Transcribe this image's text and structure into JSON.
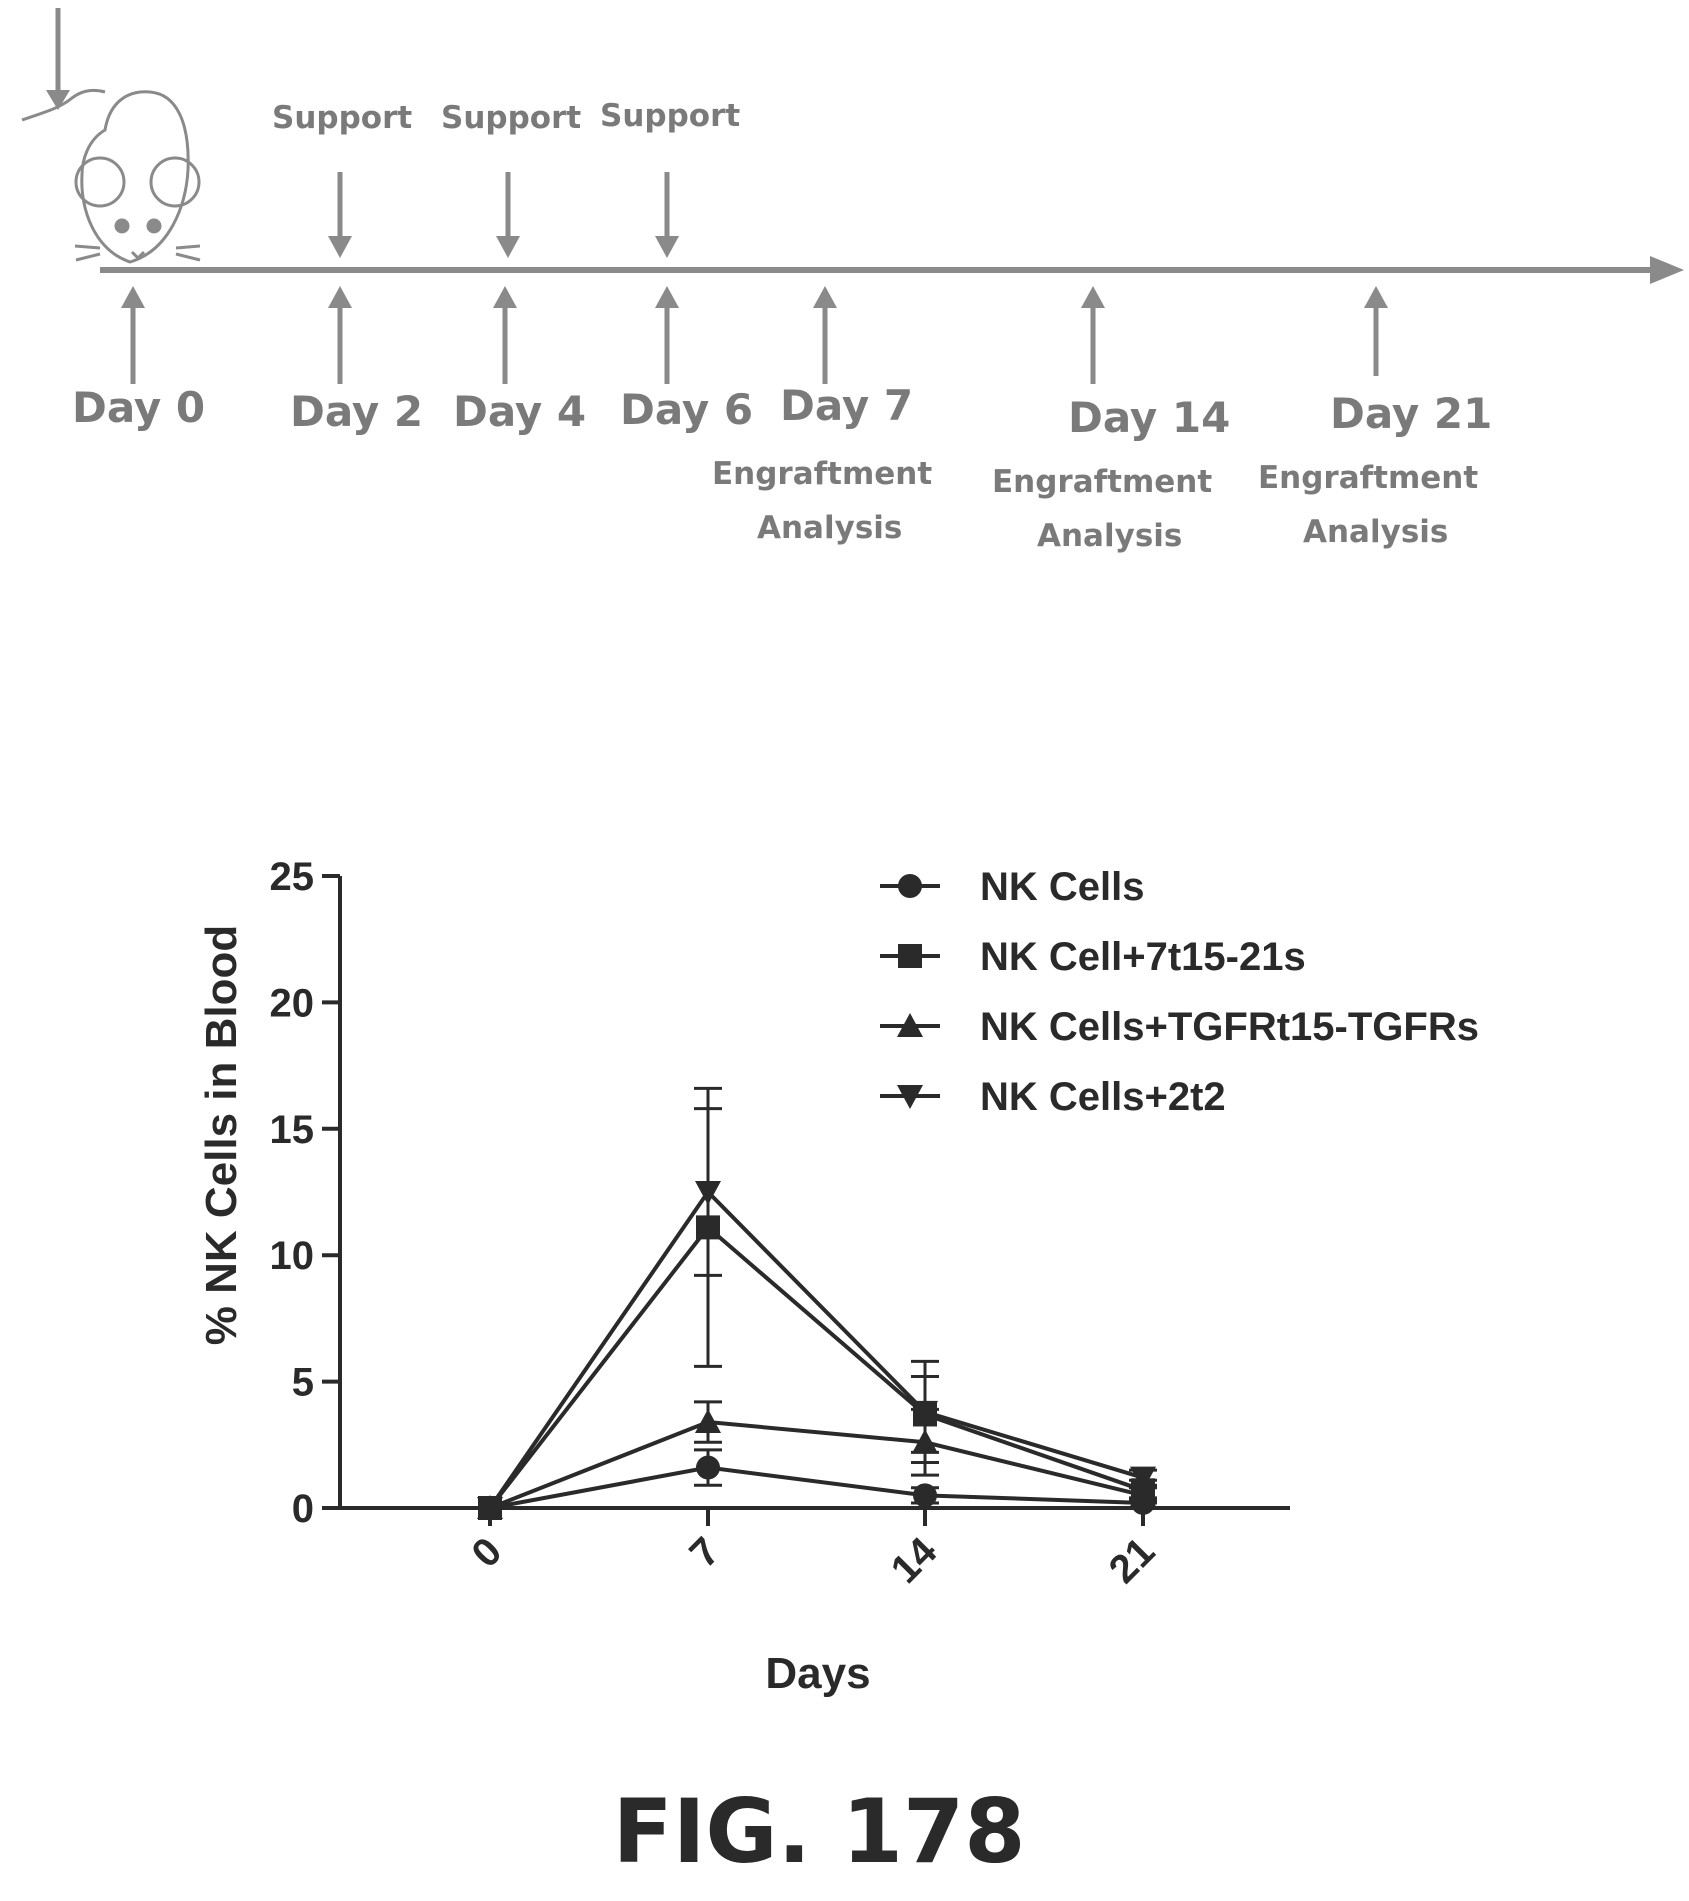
{
  "timeline": {
    "support_labels": [
      "Support",
      "Support",
      "Support"
    ],
    "day_labels": [
      "Day 0",
      "Day 2",
      "Day 4",
      "Day 6",
      "Day 7",
      "Day 14",
      "Day 21"
    ],
    "analysis_notes": [
      {
        "line1": "Engraftment",
        "line2": "Analysis"
      },
      {
        "line1": "Engraftment",
        "line2": "Analysis"
      },
      {
        "line1": "Engraftment",
        "line2": "Analysis"
      }
    ]
  },
  "chart_data": {
    "type": "line",
    "title": "",
    "xlabel": "Days",
    "ylabel": "% NK Cells in Blood",
    "x": [
      0,
      7,
      14,
      21
    ],
    "xtick_labels": [
      "0",
      "7",
      "14",
      "21"
    ],
    "ylim": [
      0,
      25
    ],
    "yticks": [
      0,
      5,
      10,
      15,
      20,
      25
    ],
    "grid": false,
    "legend_position": "top-right",
    "error_bars": true,
    "series": [
      {
        "name": "NK Cells",
        "marker": "circle",
        "values": [
          0,
          1.6,
          0.5,
          0.2
        ],
        "errors": [
          0,
          0.7,
          0.3,
          0.2
        ]
      },
      {
        "name": "NK Cell+7t15-21s",
        "marker": "square",
        "values": [
          0,
          11.1,
          3.7,
          0.7
        ],
        "errors": [
          0,
          5.5,
          1.5,
          0.4
        ]
      },
      {
        "name": "NK Cells+TGFRt15-TGFRs",
        "marker": "triangle-up",
        "values": [
          0,
          3.4,
          2.6,
          0.5
        ],
        "errors": [
          0,
          0.8,
          1.3,
          0.3
        ]
      },
      {
        "name": "NK Cells+2t2",
        "marker": "triangle-down",
        "values": [
          0,
          12.5,
          3.8,
          1.2
        ],
        "errors": [
          0,
          3.3,
          2.0,
          0.3
        ]
      }
    ]
  },
  "figure_label": "FIG. 178"
}
